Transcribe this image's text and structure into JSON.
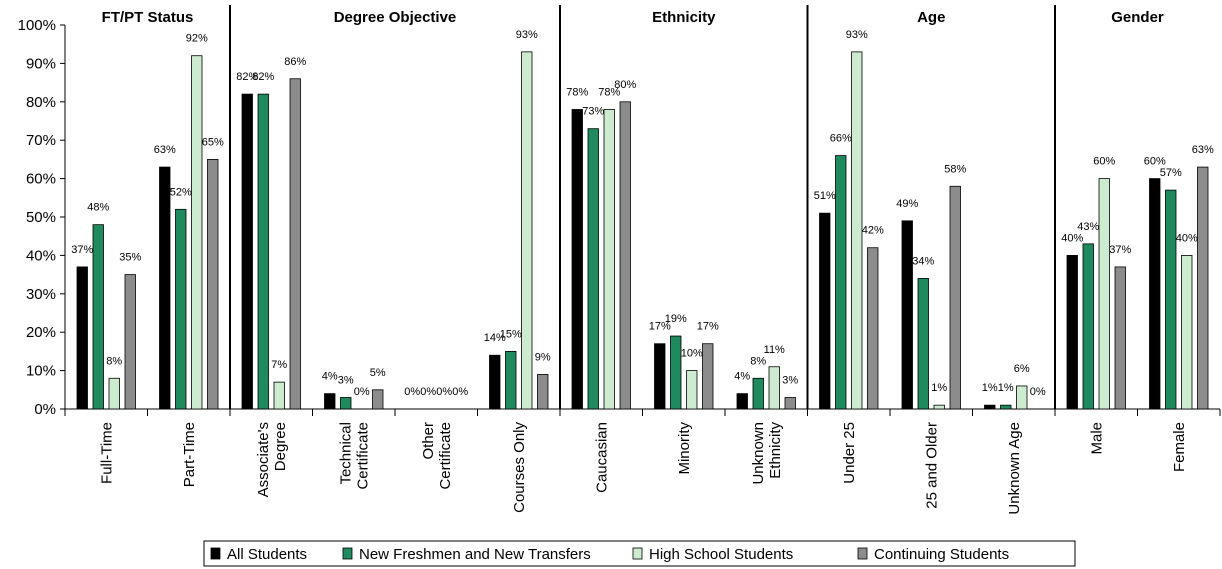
{
  "chart_data": {
    "type": "bar",
    "ylim": [
      0,
      100
    ],
    "ytick_labels": [
      "0%",
      "10%",
      "20%",
      "30%",
      "40%",
      "50%",
      "60%",
      "70%",
      "80%",
      "90%",
      "100%"
    ],
    "groups": [
      {
        "title": "FT/PT Status",
        "categories": [
          [
            "Full-Time"
          ],
          [
            "Part-Time"
          ]
        ]
      },
      {
        "title": "Degree Objective",
        "categories": [
          [
            "Associate's",
            "Degree"
          ],
          [
            "Technical",
            "Certificate"
          ],
          [
            "Other",
            "Certificate"
          ],
          [
            "Courses Only"
          ]
        ]
      },
      {
        "title": "Ethnicity",
        "categories": [
          [
            "Caucasian"
          ],
          [
            "Minority"
          ],
          [
            "Unknown",
            "Ethnicity"
          ]
        ]
      },
      {
        "title": "Age",
        "categories": [
          [
            "Under 25"
          ],
          [
            "25 and Older"
          ],
          [
            "Unknown Age"
          ]
        ]
      },
      {
        "title": "Gender",
        "categories": [
          [
            "Male"
          ],
          [
            "Female"
          ]
        ]
      }
    ],
    "series": [
      {
        "name": "All Students",
        "color": "#000000",
        "values": [
          37,
          63,
          82,
          4,
          0,
          14,
          78,
          17,
          4,
          51,
          49,
          1,
          40,
          60
        ]
      },
      {
        "name": "New Freshmen and New Transfers",
        "color": "#1e8a5e",
        "values": [
          48,
          52,
          82,
          3,
          0,
          15,
          73,
          19,
          8,
          66,
          34,
          1,
          43,
          57
        ]
      },
      {
        "name": "High School Students",
        "color": "#cdeccf",
        "values": [
          8,
          92,
          7,
          0,
          0,
          93,
          78,
          10,
          11,
          93,
          1,
          6,
          60,
          40
        ]
      },
      {
        "name": "Continuing Students",
        "color": "#8c8c8c",
        "values": [
          35,
          65,
          86,
          5,
          0,
          9,
          80,
          17,
          3,
          42,
          58,
          0,
          37,
          63
        ]
      }
    ],
    "legend_position": "bottom",
    "grid": false
  }
}
